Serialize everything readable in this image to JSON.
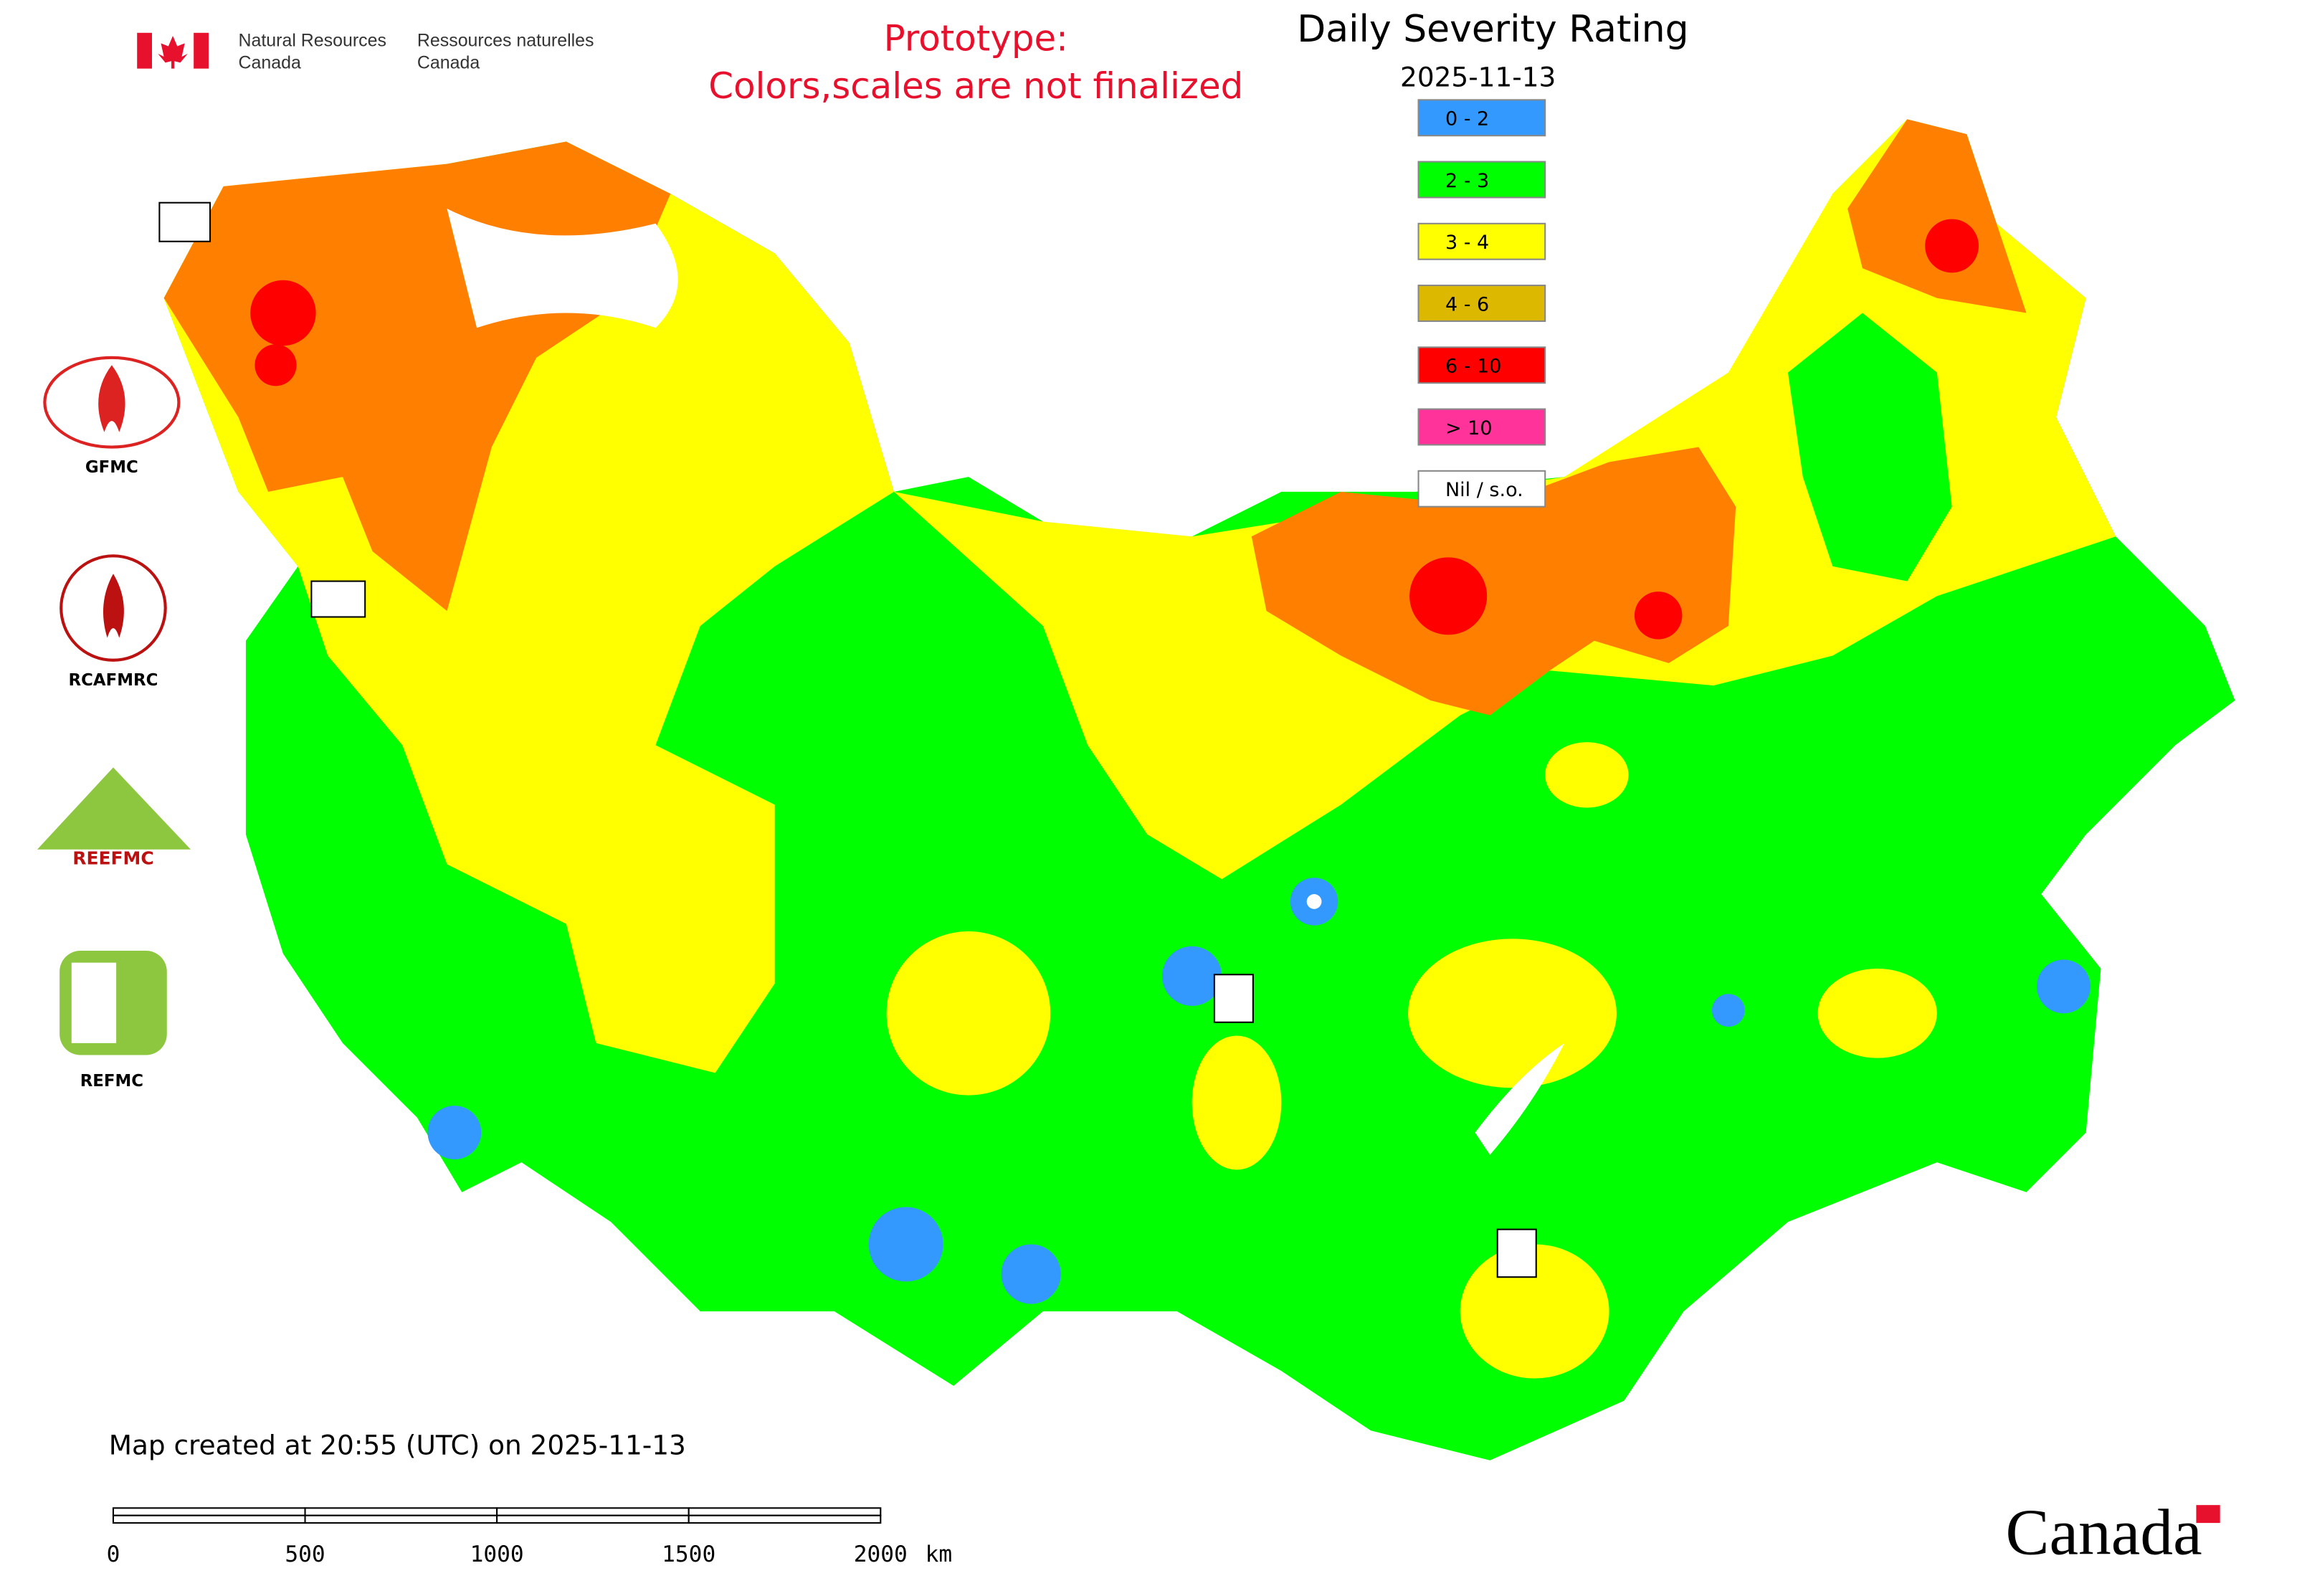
{
  "header": {
    "agency_en_1": "Natural Resources",
    "agency_en_2": "Canada",
    "agency_fr_1": "Ressources naturelles",
    "agency_fr_2": "Canada",
    "notice_1": "Prototype:",
    "notice_2": "Colors,scales are not finalized",
    "title": "Daily Severity Rating",
    "date": "2025-11-13"
  },
  "legend": [
    {
      "label": "0 - 2",
      "color": "#3399ff"
    },
    {
      "label": "2 - 3",
      "color": "#00ff00"
    },
    {
      "label": "3 - 4",
      "color": "#ffff00"
    },
    {
      "label": "4 - 6",
      "color": "#ddb800"
    },
    {
      "label": "6 - 10",
      "color": "#ff0000"
    },
    {
      "label": "> 10",
      "color": "#ff3399"
    },
    {
      "label": "Nil / s.o.",
      "color": "#ffffff"
    }
  ],
  "logos": {
    "gfmc": "GFMC",
    "rcafmrc": "RCAFMRC",
    "reefmc_mark": "REEFMC",
    "refmc": "REFMC"
  },
  "footer": {
    "created": "Map created at 20:55 (UTC) on 2025-11-13",
    "wordmark": "Canada"
  },
  "scale_bar": {
    "ticks": [
      "0",
      "500",
      "1000",
      "1500",
      "2000"
    ],
    "unit": "km"
  }
}
